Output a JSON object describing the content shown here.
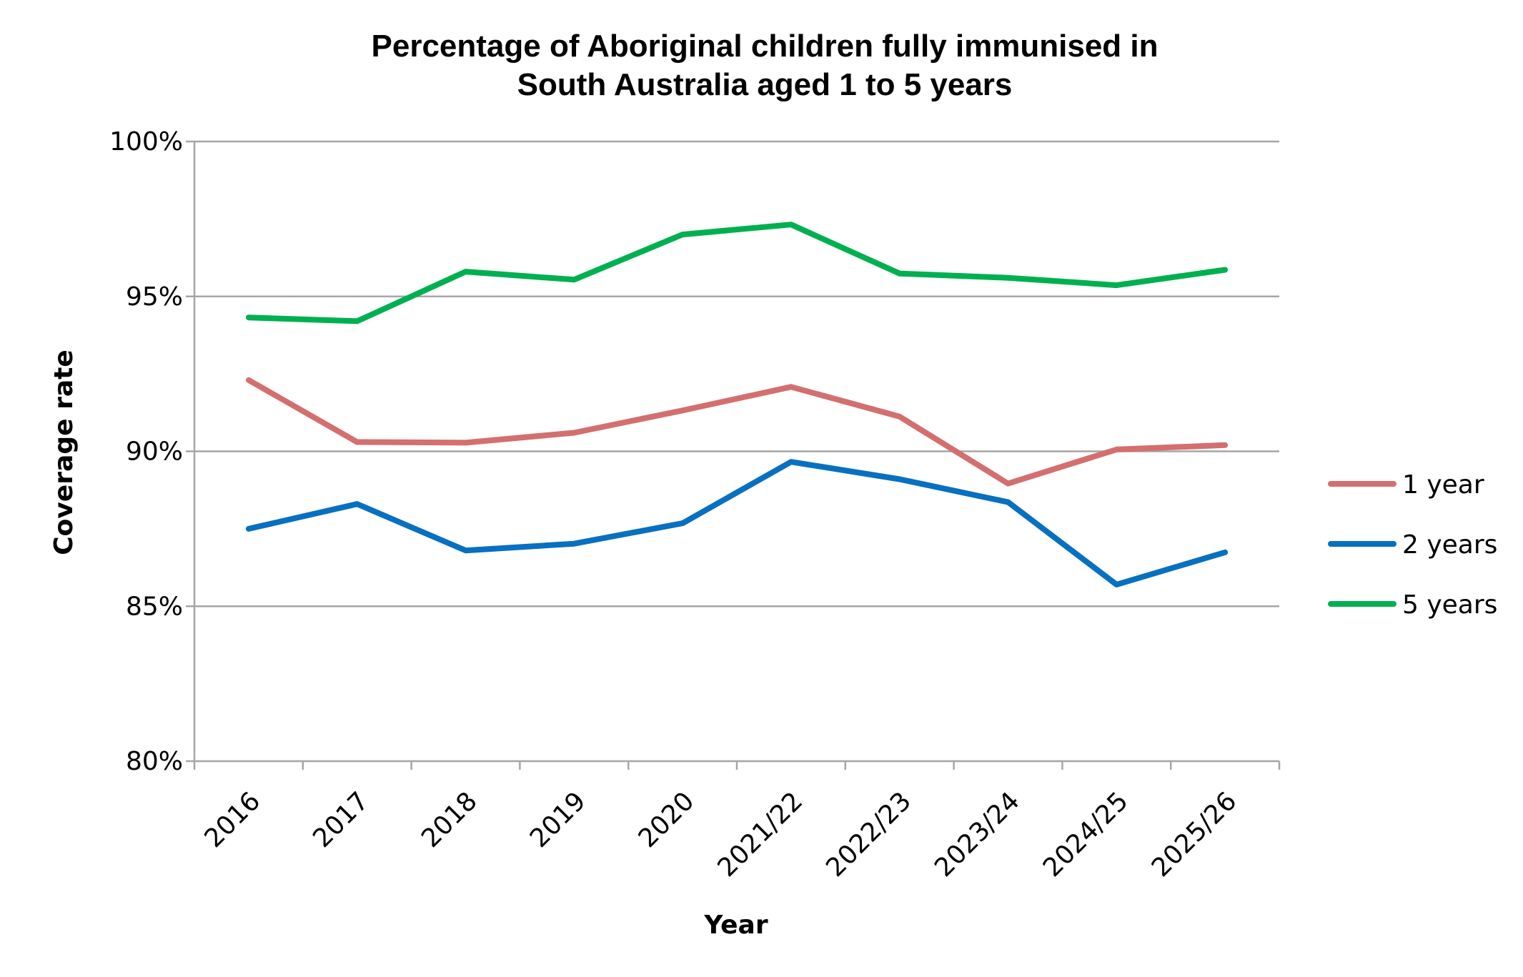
{
  "chart_data": {
    "type": "line",
    "title_line1": "Percentage of Aboriginal children fully immunised in",
    "title_line2": "South Australia aged 1 to 5 years",
    "xlabel": "Year",
    "ylabel": "Coverage rate",
    "categories": [
      "2016",
      "2017",
      "2018",
      "2019",
      "2020",
      "2021/22",
      "2022/23",
      "2023/24",
      "2024/25",
      "2025/26"
    ],
    "ylim": [
      80,
      100
    ],
    "y_ticks": [
      {
        "value": 80,
        "label": "80%"
      },
      {
        "value": 85,
        "label": "85%"
      },
      {
        "value": 90,
        "label": "90%"
      },
      {
        "value": 95,
        "label": "95%"
      },
      {
        "value": 100,
        "label": "100%"
      }
    ],
    "grid": true,
    "legend_position": "right",
    "series": [
      {
        "name": "1 year",
        "color": "#D46F6F",
        "values": [
          92.3,
          90.3,
          90.28,
          90.6,
          91.32,
          92.08,
          91.12,
          88.96,
          90.06,
          90.2
        ]
      },
      {
        "name": "2 years",
        "color": "#0870C0",
        "values": [
          87.5,
          88.3,
          86.8,
          87.02,
          87.68,
          89.66,
          89.1,
          88.36,
          85.7,
          86.74
        ]
      },
      {
        "name": "5 years",
        "color": "#00B050",
        "values": [
          94.32,
          94.2,
          95.8,
          95.54,
          97.0,
          97.32,
          95.74,
          95.6,
          95.36,
          95.86
        ]
      }
    ]
  }
}
